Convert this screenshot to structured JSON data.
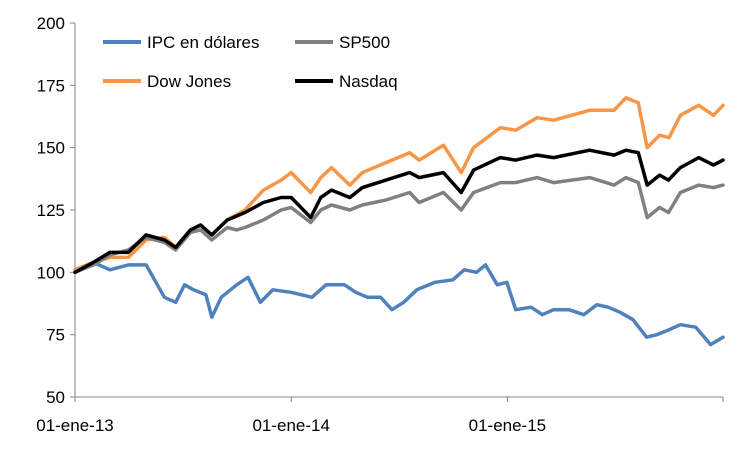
{
  "chart_data": {
    "type": "line",
    "title": "",
    "xlabel": "",
    "ylabel": "",
    "ylim": [
      50,
      200
    ],
    "yticks": [
      50,
      75,
      100,
      125,
      150,
      175,
      200
    ],
    "xlim": [
      "2013-01-01",
      "2015-12-31"
    ],
    "xticks": [
      "2013-01-01",
      "2014-01-01",
      "2015-01-01"
    ],
    "xtick_labels": [
      "01-ene-13",
      "01-ene-14",
      "01-ene-15"
    ],
    "grid": false,
    "legend_position": "top-left",
    "series": [
      {
        "name": "IPC en dólares",
        "color": "#4f81bd",
        "points": [
          [
            "2013-01-01",
            101
          ],
          [
            "2013-02-01",
            104
          ],
          [
            "2013-03-01",
            101
          ],
          [
            "2013-04-01",
            103
          ],
          [
            "2013-05-01",
            103
          ],
          [
            "2013-06-01",
            90
          ],
          [
            "2013-06-20",
            88
          ],
          [
            "2013-07-05",
            95
          ],
          [
            "2013-07-20",
            93
          ],
          [
            "2013-08-10",
            91
          ],
          [
            "2013-08-20",
            82
          ],
          [
            "2013-09-05",
            90
          ],
          [
            "2013-10-01",
            95
          ],
          [
            "2013-10-20",
            98
          ],
          [
            "2013-11-10",
            88
          ],
          [
            "2013-12-01",
            93
          ],
          [
            "2014-01-01",
            92
          ],
          [
            "2014-02-05",
            90
          ],
          [
            "2014-03-01",
            95
          ],
          [
            "2014-04-01",
            95
          ],
          [
            "2014-04-20",
            92
          ],
          [
            "2014-05-10",
            90
          ],
          [
            "2014-06-01",
            90
          ],
          [
            "2014-06-20",
            85
          ],
          [
            "2014-07-10",
            88
          ],
          [
            "2014-08-01",
            93
          ],
          [
            "2014-09-01",
            96
          ],
          [
            "2014-10-01",
            97
          ],
          [
            "2014-10-20",
            101
          ],
          [
            "2014-11-10",
            100
          ],
          [
            "2014-11-25",
            103
          ],
          [
            "2014-12-15",
            95
          ],
          [
            "2014-12-31",
            96
          ],
          [
            "2015-01-15",
            85
          ],
          [
            "2015-02-10",
            86
          ],
          [
            "2015-03-01",
            83
          ],
          [
            "2015-03-20",
            85
          ],
          [
            "2015-04-15",
            85
          ],
          [
            "2015-05-10",
            83
          ],
          [
            "2015-06-01",
            87
          ],
          [
            "2015-06-20",
            86
          ],
          [
            "2015-07-10",
            84
          ],
          [
            "2015-08-01",
            81
          ],
          [
            "2015-08-24",
            74
          ],
          [
            "2015-09-10",
            75
          ],
          [
            "2015-10-01",
            77
          ],
          [
            "2015-10-20",
            79
          ],
          [
            "2015-11-15",
            78
          ],
          [
            "2015-12-10",
            71
          ],
          [
            "2015-12-31",
            74
          ]
        ]
      },
      {
        "name": "SP500",
        "color": "#808080",
        "points": [
          [
            "2013-01-01",
            100
          ],
          [
            "2013-02-01",
            103
          ],
          [
            "2013-03-01",
            107
          ],
          [
            "2013-04-01",
            109
          ],
          [
            "2013-05-01",
            114
          ],
          [
            "2013-06-01",
            112
          ],
          [
            "2013-06-20",
            109
          ],
          [
            "2013-07-15",
            116
          ],
          [
            "2013-08-01",
            117
          ],
          [
            "2013-08-20",
            113
          ],
          [
            "2013-09-15",
            118
          ],
          [
            "2013-10-01",
            117
          ],
          [
            "2013-10-15",
            118
          ],
          [
            "2013-11-15",
            121
          ],
          [
            "2013-12-15",
            125
          ],
          [
            "2014-01-01",
            126
          ],
          [
            "2014-02-03",
            120
          ],
          [
            "2014-02-20",
            125
          ],
          [
            "2014-03-10",
            127
          ],
          [
            "2014-04-10",
            125
          ],
          [
            "2014-05-01",
            127
          ],
          [
            "2014-06-10",
            129
          ],
          [
            "2014-07-20",
            132
          ],
          [
            "2014-08-05",
            128
          ],
          [
            "2014-09-15",
            132
          ],
          [
            "2014-10-15",
            125
          ],
          [
            "2014-11-05",
            132
          ],
          [
            "2014-12-20",
            136
          ],
          [
            "2015-01-15",
            136
          ],
          [
            "2015-02-20",
            138
          ],
          [
            "2015-03-20",
            136
          ],
          [
            "2015-05-20",
            138
          ],
          [
            "2015-06-30",
            135
          ],
          [
            "2015-07-20",
            138
          ],
          [
            "2015-08-10",
            136
          ],
          [
            "2015-08-25",
            122
          ],
          [
            "2015-09-15",
            126
          ],
          [
            "2015-09-30",
            124
          ],
          [
            "2015-10-20",
            132
          ],
          [
            "2015-11-20",
            135
          ],
          [
            "2015-12-15",
            134
          ],
          [
            "2015-12-31",
            135
          ]
        ]
      },
      {
        "name": "Dow Jones",
        "color": "#f79646",
        "points": [
          [
            "2013-01-01",
            101
          ],
          [
            "2013-02-01",
            104
          ],
          [
            "2013-03-01",
            106
          ],
          [
            "2013-04-01",
            106
          ],
          [
            "2013-05-01",
            113
          ],
          [
            "2013-06-01",
            114
          ],
          [
            "2013-06-20",
            110
          ],
          [
            "2013-07-15",
            117
          ],
          [
            "2013-08-01",
            119
          ],
          [
            "2013-08-20",
            115
          ],
          [
            "2013-09-15",
            121
          ],
          [
            "2013-10-15",
            125
          ],
          [
            "2013-11-15",
            133
          ],
          [
            "2013-12-15",
            137
          ],
          [
            "2014-01-01",
            140
          ],
          [
            "2014-02-03",
            132
          ],
          [
            "2014-02-20",
            138
          ],
          [
            "2014-03-10",
            142
          ],
          [
            "2014-04-10",
            135
          ],
          [
            "2014-05-01",
            140
          ],
          [
            "2014-06-10",
            144
          ],
          [
            "2014-07-20",
            148
          ],
          [
            "2014-08-05",
            145
          ],
          [
            "2014-09-15",
            151
          ],
          [
            "2014-10-15",
            140
          ],
          [
            "2014-11-05",
            150
          ],
          [
            "2014-12-20",
            158
          ],
          [
            "2015-01-15",
            157
          ],
          [
            "2015-02-20",
            162
          ],
          [
            "2015-03-20",
            161
          ],
          [
            "2015-05-20",
            165
          ],
          [
            "2015-06-30",
            165
          ],
          [
            "2015-07-20",
            170
          ],
          [
            "2015-08-10",
            168
          ],
          [
            "2015-08-25",
            150
          ],
          [
            "2015-09-15",
            155
          ],
          [
            "2015-10-01",
            154
          ],
          [
            "2015-10-20",
            163
          ],
          [
            "2015-11-20",
            167
          ],
          [
            "2015-12-15",
            163
          ],
          [
            "2015-12-31",
            167
          ]
        ]
      },
      {
        "name": "Nasdaq",
        "color": "#000000",
        "points": [
          [
            "2013-01-01",
            100
          ],
          [
            "2013-02-01",
            104
          ],
          [
            "2013-03-01",
            108
          ],
          [
            "2013-04-01",
            108
          ],
          [
            "2013-05-01",
            115
          ],
          [
            "2013-06-01",
            113
          ],
          [
            "2013-06-20",
            110
          ],
          [
            "2013-07-15",
            117
          ],
          [
            "2013-08-01",
            119
          ],
          [
            "2013-08-20",
            115
          ],
          [
            "2013-09-15",
            121
          ],
          [
            "2013-10-15",
            124
          ],
          [
            "2013-11-15",
            128
          ],
          [
            "2013-12-15",
            130
          ],
          [
            "2014-01-01",
            130
          ],
          [
            "2014-02-03",
            122
          ],
          [
            "2014-02-20",
            130
          ],
          [
            "2014-03-10",
            133
          ],
          [
            "2014-04-10",
            130
          ],
          [
            "2014-05-01",
            134
          ],
          [
            "2014-06-10",
            137
          ],
          [
            "2014-07-20",
            140
          ],
          [
            "2014-08-05",
            138
          ],
          [
            "2014-09-15",
            140
          ],
          [
            "2014-10-15",
            132
          ],
          [
            "2014-11-05",
            141
          ],
          [
            "2014-12-20",
            146
          ],
          [
            "2015-01-15",
            145
          ],
          [
            "2015-02-20",
            147
          ],
          [
            "2015-03-20",
            146
          ],
          [
            "2015-05-20",
            149
          ],
          [
            "2015-06-30",
            147
          ],
          [
            "2015-07-20",
            149
          ],
          [
            "2015-08-10",
            148
          ],
          [
            "2015-08-25",
            135
          ],
          [
            "2015-09-15",
            139
          ],
          [
            "2015-09-30",
            137
          ],
          [
            "2015-10-20",
            142
          ],
          [
            "2015-11-20",
            146
          ],
          [
            "2015-12-15",
            143
          ],
          [
            "2015-12-31",
            145
          ]
        ]
      }
    ]
  }
}
